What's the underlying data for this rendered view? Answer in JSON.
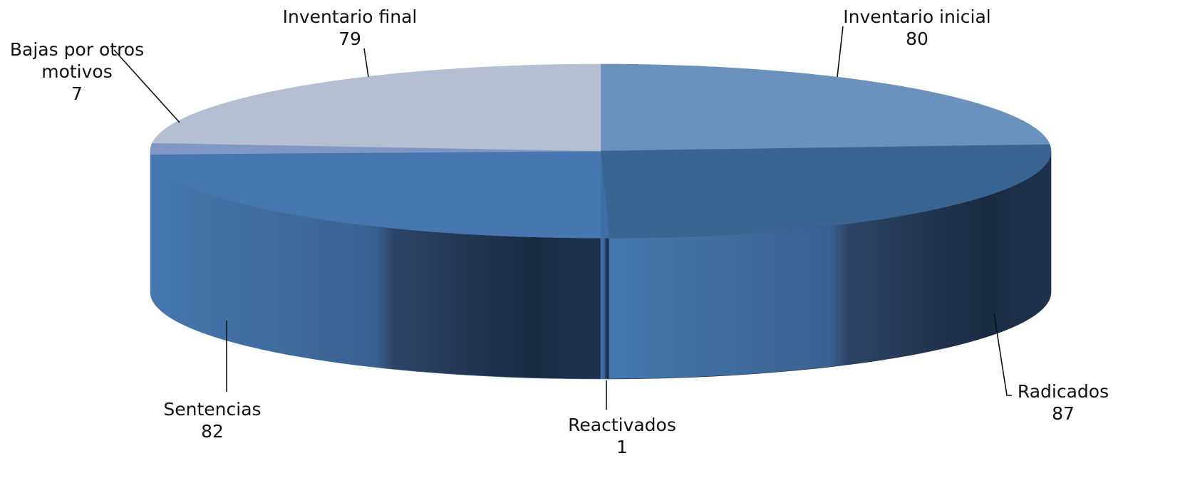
{
  "chart_data": {
    "type": "pie",
    "title": "",
    "legend": "none",
    "categories": [
      "Inventario inicial",
      "Radicados",
      "Reactivados",
      "Sentencias",
      "Bajas por otros motivos",
      "Inventario final"
    ],
    "values": [
      80,
      87,
      1,
      82,
      7,
      79
    ],
    "value_labels": [
      "80",
      "87",
      "1",
      "82",
      "7",
      "79"
    ],
    "label_lines": [
      [
        "Inventario inicial"
      ],
      [
        "Radicados"
      ],
      [
        "Reactivados"
      ],
      [
        "Sentencias"
      ],
      [
        "Bajas por otros",
        "motivos"
      ],
      [
        "Inventario final"
      ]
    ],
    "colors": [
      "#6b91bd",
      "#3a6591",
      "#3f6fa5",
      "#4677b0",
      "#7f98c3",
      "#b4bfd2"
    ],
    "side_colors": [
      "#4b74a6",
      "#1c2c44",
      "#4678ad",
      "#426fa6",
      "#5a7fb8",
      "#7a8fb0"
    ]
  }
}
